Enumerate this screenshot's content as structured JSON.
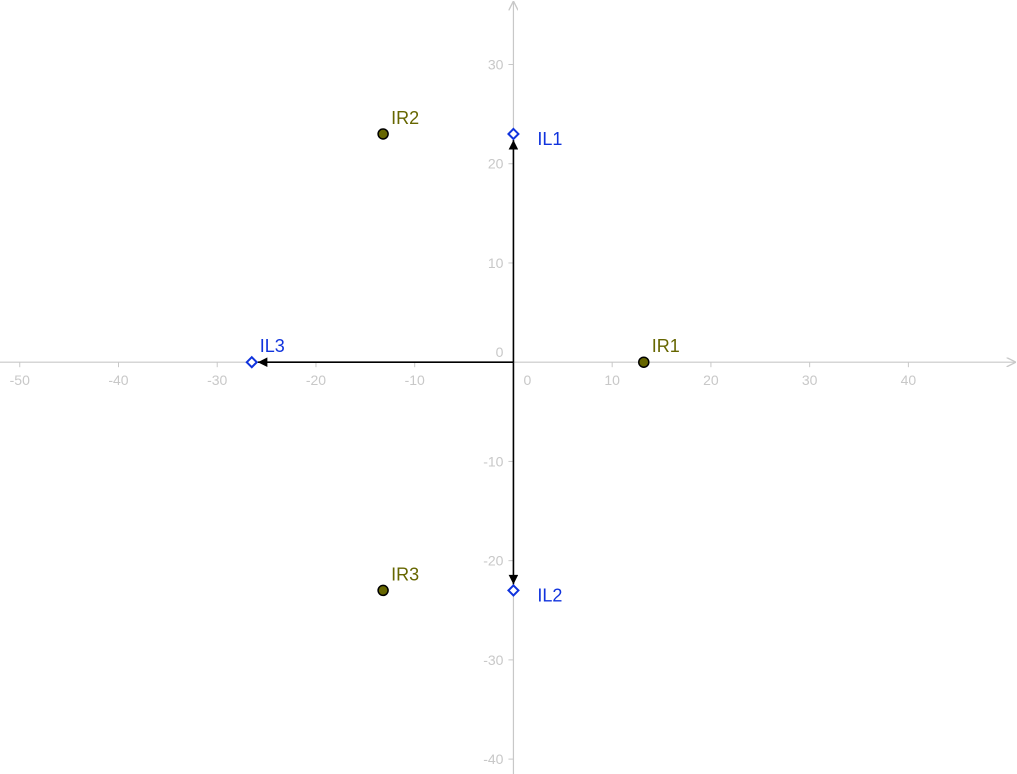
{
  "chart_data": {
    "type": "scatter",
    "title": "",
    "xlabel": "",
    "ylabel": "",
    "xlim": [
      -52,
      51
    ],
    "ylim": [
      -41.5,
      36.5
    ],
    "grid": false,
    "x_ticks": [
      -50,
      -40,
      -30,
      -20,
      -10,
      0,
      10,
      20,
      30,
      40
    ],
    "y_ticks": [
      -40,
      -30,
      -20,
      -10,
      0,
      10,
      20,
      30
    ],
    "x_tick_labels": [
      "-50",
      "-40",
      "-30",
      "-20",
      "-10",
      "0",
      "10",
      "20",
      "30",
      "40"
    ],
    "y_tick_labels": [
      "-40",
      "-30",
      "-20",
      "-10",
      "0",
      "10",
      "20",
      "30"
    ],
    "points": [
      {
        "label": "IL1",
        "x": 0,
        "y": 23,
        "style": "open-diamond",
        "color": "#1033dd"
      },
      {
        "label": "IL2",
        "x": 0,
        "y": -23,
        "style": "open-diamond",
        "color": "#1033dd"
      },
      {
        "label": "IL3",
        "x": -26.5,
        "y": 0,
        "style": "open-diamond",
        "color": "#1033dd"
      },
      {
        "label": "IR1",
        "x": 13.2,
        "y": 0,
        "style": "filled-circle",
        "color": "#666600"
      },
      {
        "label": "IR2",
        "x": -13.2,
        "y": 23,
        "style": "filled-circle",
        "color": "#666600"
      },
      {
        "label": "IR3",
        "x": -13.2,
        "y": -23,
        "style": "filled-circle",
        "color": "#666600"
      }
    ],
    "vectors": [
      {
        "name": "IL1",
        "from": [
          0,
          0
        ],
        "to": [
          0,
          23
        ]
      },
      {
        "name": "IL2",
        "from": [
          0,
          0
        ],
        "to": [
          0,
          -23
        ]
      },
      {
        "name": "IL3",
        "from": [
          0,
          0
        ],
        "to": [
          -26.5,
          0
        ]
      }
    ],
    "colors": {
      "axis": "#c8c8c8",
      "vector": "#000000",
      "il_points": "#1033dd",
      "ir_points": "#666600",
      "ir_fill": "#666600"
    }
  }
}
